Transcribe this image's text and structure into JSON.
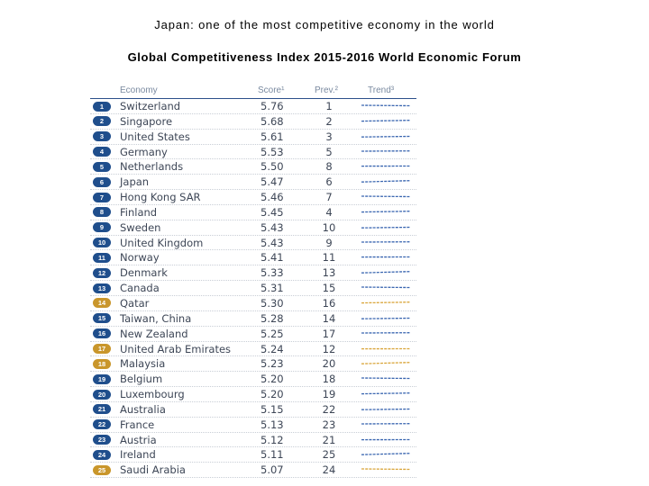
{
  "title": "Japan: one of the most competitive economy in the world",
  "subtitle": "Global Competitiveness Index 2015-2016  World Economic Forum",
  "table": {
    "headers": {
      "economy": "Economy",
      "score": "Score¹",
      "prev": "Prev.²",
      "trend": "Trend³"
    },
    "colors": {
      "badge_blue": "#1f4e8c",
      "badge_gold": "#c9962b",
      "trend_blue": "#3a66b0",
      "trend_gold": "#d9a53a"
    },
    "rows": [
      {
        "rank": "1",
        "economy": "Switzerland",
        "score": "5.76",
        "prev": "1",
        "color": "blue"
      },
      {
        "rank": "2",
        "economy": "Singapore",
        "score": "5.68",
        "prev": "2",
        "color": "blue"
      },
      {
        "rank": "3",
        "economy": "United States",
        "score": "5.61",
        "prev": "3",
        "color": "blue"
      },
      {
        "rank": "4",
        "economy": "Germany",
        "score": "5.53",
        "prev": "5",
        "color": "blue"
      },
      {
        "rank": "5",
        "economy": "Netherlands",
        "score": "5.50",
        "prev": "8",
        "color": "blue"
      },
      {
        "rank": "6",
        "economy": "Japan",
        "score": "5.47",
        "prev": "6",
        "color": "blue"
      },
      {
        "rank": "7",
        "economy": "Hong Kong SAR",
        "score": "5.46",
        "prev": "7",
        "color": "blue"
      },
      {
        "rank": "8",
        "economy": "Finland",
        "score": "5.45",
        "prev": "4",
        "color": "blue"
      },
      {
        "rank": "9",
        "economy": "Sweden",
        "score": "5.43",
        "prev": "10",
        "color": "blue"
      },
      {
        "rank": "10",
        "economy": "United Kingdom",
        "score": "5.43",
        "prev": "9",
        "color": "blue"
      },
      {
        "rank": "11",
        "economy": "Norway",
        "score": "5.41",
        "prev": "11",
        "color": "blue"
      },
      {
        "rank": "12",
        "economy": "Denmark",
        "score": "5.33",
        "prev": "13",
        "color": "blue"
      },
      {
        "rank": "13",
        "economy": "Canada",
        "score": "5.31",
        "prev": "15",
        "color": "blue"
      },
      {
        "rank": "14",
        "economy": "Qatar",
        "score": "5.30",
        "prev": "16",
        "color": "gold"
      },
      {
        "rank": "15",
        "economy": "Taiwan, China",
        "score": "5.28",
        "prev": "14",
        "color": "blue"
      },
      {
        "rank": "16",
        "economy": "New Zealand",
        "score": "5.25",
        "prev": "17",
        "color": "blue"
      },
      {
        "rank": "17",
        "economy": "United Arab Emirates",
        "score": "5.24",
        "prev": "12",
        "color": "gold"
      },
      {
        "rank": "18",
        "economy": "Malaysia",
        "score": "5.23",
        "prev": "20",
        "color": "gold"
      },
      {
        "rank": "19",
        "economy": "Belgium",
        "score": "5.20",
        "prev": "18",
        "color": "blue"
      },
      {
        "rank": "20",
        "economy": "Luxembourg",
        "score": "5.20",
        "prev": "19",
        "color": "blue"
      },
      {
        "rank": "21",
        "economy": "Australia",
        "score": "5.15",
        "prev": "22",
        "color": "blue"
      },
      {
        "rank": "22",
        "economy": "France",
        "score": "5.13",
        "prev": "23",
        "color": "blue"
      },
      {
        "rank": "23",
        "economy": "Austria",
        "score": "5.12",
        "prev": "21",
        "color": "blue"
      },
      {
        "rank": "24",
        "economy": "Ireland",
        "score": "5.11",
        "prev": "25",
        "color": "blue"
      },
      {
        "rank": "25",
        "economy": "Saudi Arabia",
        "score": "5.07",
        "prev": "24",
        "color": "gold"
      }
    ]
  }
}
